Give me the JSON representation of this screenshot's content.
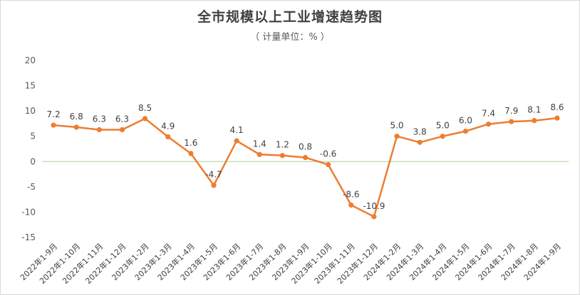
{
  "chart_data": {
    "type": "line",
    "title": "全市规模以上工业增速趋势图",
    "subtitle": "（ 计量单位：% ）",
    "xlabel": "",
    "ylabel": "",
    "ylim": [
      -15,
      20
    ],
    "yticks": [
      "20",
      "15",
      "10",
      "5",
      "0",
      "-5",
      "-10",
      "-15"
    ],
    "ytick_values": [
      20,
      15,
      10,
      5,
      0,
      -5,
      -10,
      -15
    ],
    "grid": false,
    "legend": "none",
    "line_color": "#ED7D31",
    "zero_line_color": "#A9D18E",
    "categories": [
      "2022年1-9月",
      "2022年1-10月",
      "2022年1-11月",
      "2022年1-12月",
      "2023年1-2月",
      "2023年1-3月",
      "2023年1-4月",
      "2023年1-5月",
      "2023年1-6月",
      "2023年1-7月",
      "2023年1-8月",
      "2023年1-9月",
      "2023年1-10月",
      "2023年1-11月",
      "2023年1-12月",
      "2024年1-2月",
      "2024年1-3月",
      "2024年1-4月",
      "2024年1-5月",
      "2024年1-6月",
      "2024年1-7月",
      "2024年1-8月",
      "2024年1-9月"
    ],
    "series": [
      {
        "values": [
          7.2,
          6.8,
          6.3,
          6.3,
          8.5,
          4.9,
          1.6,
          -4.7,
          4.1,
          1.4,
          1.2,
          0.8,
          -0.6,
          -8.6,
          -10.9,
          5.0,
          3.8,
          5.0,
          6.0,
          7.4,
          7.9,
          8.1,
          8.6
        ],
        "labels": [
          "7.2",
          "6.8",
          "6.3",
          "6.3",
          "8.5",
          "4.9",
          "1.6",
          "-4.7",
          "4.1",
          "1.4",
          "1.2",
          "0.8",
          "-0.6",
          "-8.6",
          "-10.9",
          "5.0",
          "3.8",
          "5.0",
          "6.0",
          "7.4",
          "7.9",
          "8.1",
          "8.6"
        ]
      }
    ]
  }
}
